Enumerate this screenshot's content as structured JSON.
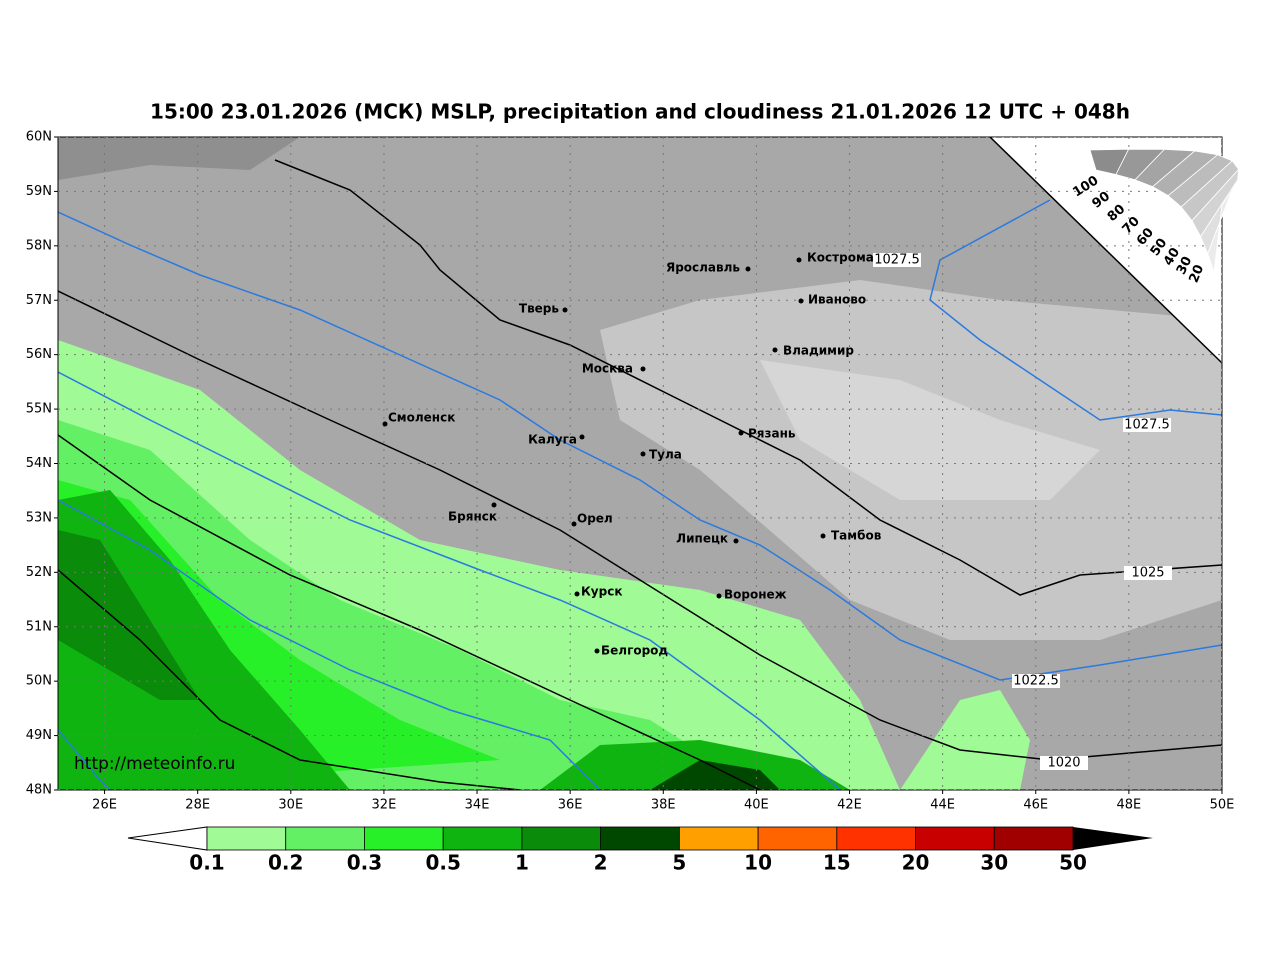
{
  "header": {
    "title": "15:00 23.01.2026 (МСК) MSLP, precipitation and cloudiness 21.01.2026 12 UTC + 048h"
  },
  "map": {
    "lat_ticks": [
      {
        "value": 60,
        "label": "60N"
      },
      {
        "value": 59,
        "label": "59N"
      },
      {
        "value": 58,
        "label": "58N"
      },
      {
        "value": 57,
        "label": "57N"
      },
      {
        "value": 56,
        "label": "56N"
      },
      {
        "value": 55,
        "label": "55N"
      },
      {
        "value": 54,
        "label": "54N"
      },
      {
        "value": 53,
        "label": "53N"
      },
      {
        "value": 52,
        "label": "52N"
      },
      {
        "value": 51,
        "label": "51N"
      },
      {
        "value": 50,
        "label": "50N"
      },
      {
        "value": 49,
        "label": "49N"
      },
      {
        "value": 48,
        "label": "48N"
      }
    ],
    "lon_ticks": [
      {
        "value": 26,
        "label": "26E"
      },
      {
        "value": 28,
        "label": "28E"
      },
      {
        "value": 30,
        "label": "30E"
      },
      {
        "value": 32,
        "label": "32E"
      },
      {
        "value": 34,
        "label": "34E"
      },
      {
        "value": 36,
        "label": "36E"
      },
      {
        "value": 38,
        "label": "38E"
      },
      {
        "value": 40,
        "label": "40E"
      },
      {
        "value": 42,
        "label": "42E"
      },
      {
        "value": 44,
        "label": "44E"
      },
      {
        "value": 46,
        "label": "46E"
      },
      {
        "value": 48,
        "label": "48E"
      },
      {
        "value": 50,
        "label": "50E"
      }
    ],
    "cities": [
      "Ярославль",
      "Кострома",
      "Тверь",
      "Иваново",
      "Москва",
      "Владимир",
      "Смоленск",
      "Рязань",
      "Калуга",
      "Тула",
      "Брянск",
      "Орел",
      "Липецк",
      "Тамбов",
      "Курск",
      "Воронеж",
      "Белгород"
    ],
    "isobar_labels": [
      1027.5,
      1027.5,
      1025,
      1022.5,
      1020
    ],
    "cloudiness_labels": [
      100,
      90,
      80,
      70,
      60,
      50,
      40,
      30,
      20
    ],
    "url": "http://meteoinfo.ru"
  },
  "colorbar": {
    "labels": [
      0.1,
      0.2,
      0.3,
      0.5,
      1,
      2,
      5,
      10,
      15,
      20,
      30,
      50
    ],
    "colors": [
      "#a0fa96",
      "#64f064",
      "#28f028",
      "#10b410",
      "#0a8c0a",
      "#004800",
      "#ffa000",
      "#ff6400",
      "#ff3200",
      "#c80000",
      "#a00000"
    ]
  }
}
